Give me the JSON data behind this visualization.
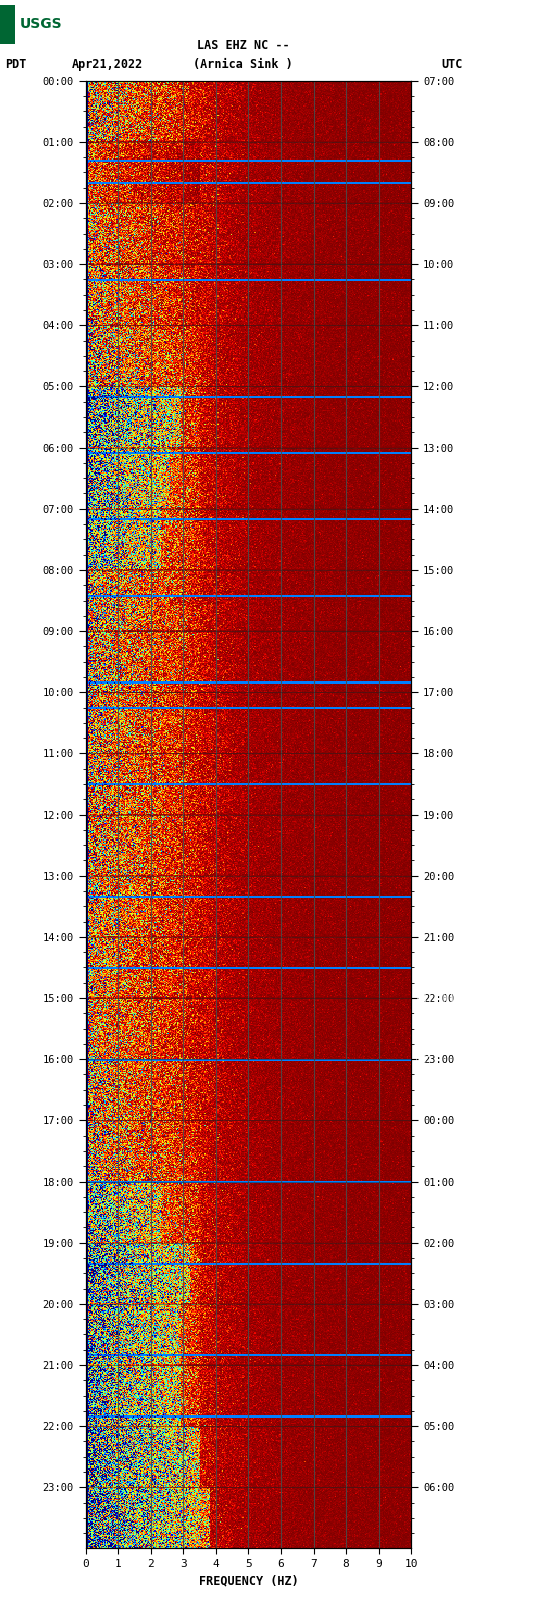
{
  "title_line1": "LAS EHZ NC --",
  "title_line2": "(Arnica Sink )",
  "left_label": "PDT",
  "date_label": "Apr21,2022",
  "right_label": "UTC",
  "xlabel": "FREQUENCY (HZ)",
  "freq_min": 0,
  "freq_max": 10,
  "left_ticks": [
    "00:00",
    "01:00",
    "02:00",
    "03:00",
    "04:00",
    "05:00",
    "06:00",
    "07:00",
    "08:00",
    "09:00",
    "10:00",
    "11:00",
    "12:00",
    "13:00",
    "14:00",
    "15:00",
    "16:00",
    "17:00",
    "18:00",
    "19:00",
    "20:00",
    "21:00",
    "22:00",
    "23:00"
  ],
  "right_ticks": [
    "07:00",
    "08:00",
    "09:00",
    "10:00",
    "11:00",
    "12:00",
    "13:00",
    "14:00",
    "15:00",
    "16:00",
    "17:00",
    "18:00",
    "19:00",
    "20:00",
    "21:00",
    "22:00",
    "23:00",
    "00:00",
    "01:00",
    "02:00",
    "03:00",
    "04:00",
    "05:00",
    "06:00"
  ],
  "bg_color": "#ffffff",
  "plot_bg_color": "#8b0000",
  "colormap": "jet",
  "fig_width": 5.52,
  "fig_height": 16.13,
  "dpi": 100,
  "right_panel_color": "#000000",
  "usgs_logo_color": "#006633",
  "grid_color": "#4a4a4a",
  "vline_freqs": [
    1,
    2,
    3,
    4,
    5,
    6,
    7,
    8,
    9
  ],
  "freq_ticks": [
    0,
    1,
    2,
    3,
    4,
    5,
    6,
    7,
    8,
    9,
    10
  ]
}
